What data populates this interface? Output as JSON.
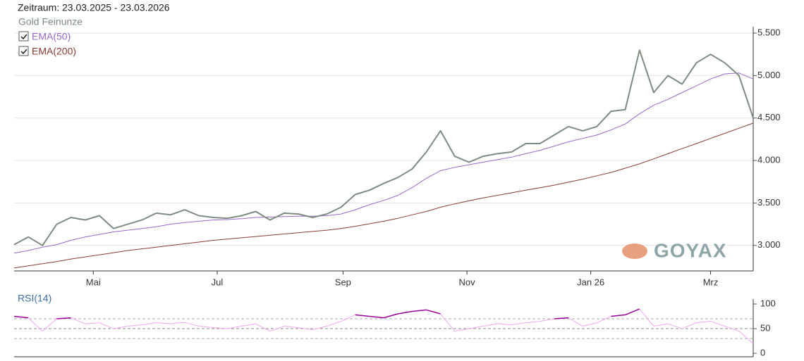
{
  "logo": "GOYAX",
  "chart_data": [
    {
      "type": "line",
      "title": "Zeitraum: 23.03.2025 - 23.03.2026",
      "series": [
        {
          "name": "Gold Feinunze",
          "color": "#7d8c80",
          "values": [
            3010,
            3100,
            3000,
            3250,
            3330,
            3300,
            3350,
            3200,
            3250,
            3300,
            3380,
            3360,
            3420,
            3350,
            3330,
            3320,
            3350,
            3400,
            3300,
            3380,
            3370,
            3330,
            3370,
            3450,
            3600,
            3650,
            3730,
            3800,
            3900,
            4100,
            4350,
            4050,
            3980,
            4050,
            4080,
            4100,
            4200,
            4200,
            4300,
            4400,
            4350,
            4400,
            4580,
            4600,
            5300,
            4800,
            5000,
            4900,
            5150,
            5250,
            5150,
            5000,
            4500
          ]
        },
        {
          "name": "EMA(50)",
          "color": "#9966cc",
          "checked": true,
          "values": [
            2910,
            2940,
            2980,
            3010,
            3060,
            3100,
            3130,
            3160,
            3180,
            3200,
            3220,
            3250,
            3270,
            3285,
            3300,
            3305,
            3315,
            3330,
            3335,
            3340,
            3345,
            3345,
            3350,
            3370,
            3420,
            3480,
            3530,
            3590,
            3680,
            3790,
            3880,
            3920,
            3950,
            3980,
            4010,
            4040,
            4080,
            4120,
            4170,
            4220,
            4260,
            4300,
            4360,
            4430,
            4550,
            4650,
            4720,
            4800,
            4880,
            4960,
            5020,
            5030,
            4960
          ]
        },
        {
          "name": "EMA(200)",
          "color": "#8b3a2f",
          "checked": true,
          "values": [
            2735,
            2760,
            2785,
            2810,
            2840,
            2865,
            2890,
            2915,
            2940,
            2960,
            2980,
            3000,
            3020,
            3040,
            3060,
            3075,
            3090,
            3105,
            3120,
            3135,
            3150,
            3165,
            3180,
            3200,
            3225,
            3255,
            3285,
            3320,
            3360,
            3400,
            3450,
            3490,
            3525,
            3560,
            3590,
            3620,
            3650,
            3680,
            3710,
            3745,
            3780,
            3820,
            3860,
            3910,
            3960,
            4020,
            4080,
            4140,
            4200,
            4260,
            4320,
            4380,
            4440
          ]
        }
      ],
      "xlim": [
        0,
        52
      ],
      "xticks": [
        {
          "value": 5.57,
          "label": "Mai"
        },
        {
          "value": 14.29,
          "label": "Jul"
        },
        {
          "value": 23.14,
          "label": "Sep"
        },
        {
          "value": 31.86,
          "label": "Nov"
        },
        {
          "value": 40.57,
          "label": "Jan 26"
        },
        {
          "value": 49,
          "label": "Mrz"
        }
      ],
      "ylim": [
        2700,
        5575
      ],
      "yticks": [
        {
          "value": 3000,
          "label": "3.000"
        },
        {
          "value": 3500,
          "label": "3.500"
        },
        {
          "value": 4000,
          "label": "4.000"
        },
        {
          "value": 4500,
          "label": "4.500"
        },
        {
          "value": 5000,
          "label": "5.000"
        },
        {
          "value": 5500,
          "label": "5.500"
        }
      ],
      "grid": true
    },
    {
      "type": "line",
      "title": "RSI(14)",
      "values": [
        75,
        72,
        45,
        70,
        72,
        60,
        62,
        50,
        55,
        58,
        62,
        60,
        63,
        55,
        52,
        50,
        55,
        60,
        45,
        55,
        52,
        48,
        55,
        65,
        78,
        75,
        72,
        80,
        85,
        88,
        80,
        45,
        50,
        55,
        60,
        58,
        62,
        65,
        70,
        72,
        55,
        62,
        75,
        78,
        90,
        55,
        60,
        50,
        62,
        65,
        55,
        45,
        20
      ],
      "color": "#f0a8f0",
      "high_color": "#990099",
      "ref_lines": [
        30,
        70
      ],
      "xlim": [
        0,
        52
      ],
      "ylim": [
        -7,
        110
      ],
      "yticks": [
        0,
        50,
        100
      ]
    }
  ]
}
